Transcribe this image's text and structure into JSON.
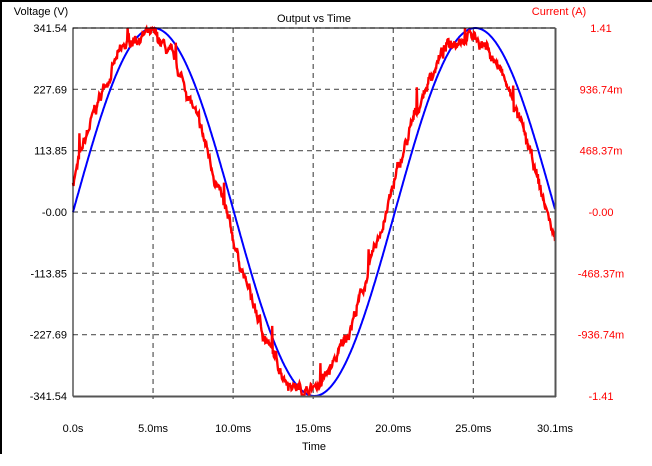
{
  "chart_data": {
    "type": "line",
    "title": "Output vs Time",
    "xlabel": "Time",
    "ylabel_left": "Voltage (V)",
    "ylabel_right": "Current (A)",
    "x_ticks": [
      "0.0s",
      "5.0ms",
      "10.0ms",
      "15.0ms",
      "20.0ms",
      "25.0ms",
      "30.1ms"
    ],
    "x_tick_values_ms": [
      0,
      5,
      10,
      15,
      20,
      25,
      30.1
    ],
    "y_left_ticks": [
      "341.54",
      "227.69",
      "113.85",
      "-0.00",
      "-113.85",
      "-227.69",
      "-341.54"
    ],
    "y_right_ticks": [
      "1.41",
      "936.74m",
      "468.37m",
      "-0.00",
      "-468.37m",
      "-936.74m",
      "-1.41"
    ],
    "xlim_ms": [
      0,
      30.1
    ],
    "ylim_left": [
      -341.54,
      341.54
    ],
    "ylim_right": [
      -1.41,
      1.41
    ],
    "grid": true,
    "legend": "none",
    "series": [
      {
        "name": "Voltage (V)",
        "axis": "left",
        "color": "#0000ff",
        "shape": "sine",
        "amplitude": 341.54,
        "period_ms": 20.1,
        "phase_ms": 0,
        "noise": 0,
        "key_points": [
          {
            "t_ms": 0,
            "v": 0
          },
          {
            "t_ms": 5.1,
            "v": 341.5
          },
          {
            "t_ms": 10.1,
            "v": 0
          },
          {
            "t_ms": 15.1,
            "v": -341.5
          },
          {
            "t_ms": 20.1,
            "v": 0
          },
          {
            "t_ms": 25.1,
            "v": 341.5
          },
          {
            "t_ms": 30.1,
            "v": 0
          }
        ]
      },
      {
        "name": "Current (A)",
        "axis": "right",
        "color": "#ff0000",
        "shape": "sine",
        "amplitude": 1.36,
        "period_ms": 20.1,
        "phase_ms": -0.55,
        "noise": 0.045,
        "key_points": [
          {
            "t_ms": 0,
            "v": 0.1
          },
          {
            "t_ms": 4.5,
            "v": 1.36
          },
          {
            "t_ms": 9.5,
            "v": 0
          },
          {
            "t_ms": 14.5,
            "v": -1.36
          },
          {
            "t_ms": 19.5,
            "v": 0
          },
          {
            "t_ms": 24.5,
            "v": 1.36
          },
          {
            "t_ms": 30.1,
            "v": -0.08
          }
        ]
      }
    ]
  },
  "colors": {
    "voltage": "#0000ff",
    "current": "#ff0000",
    "grid": "#555555",
    "axis": "#000000"
  }
}
